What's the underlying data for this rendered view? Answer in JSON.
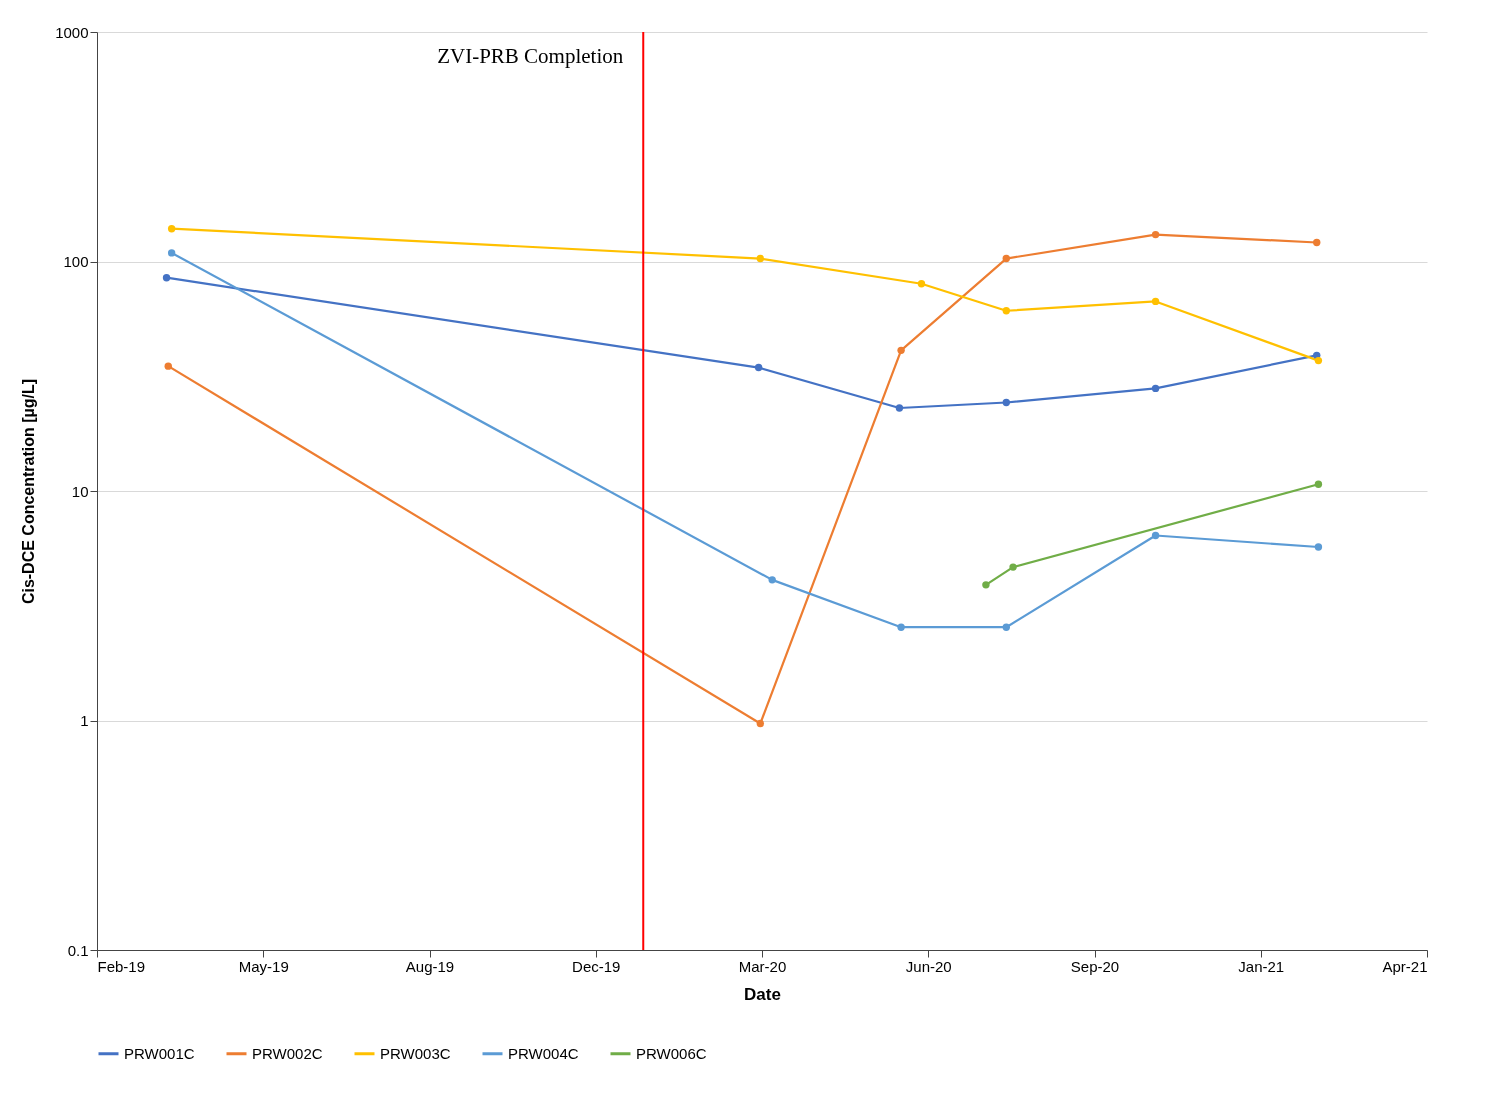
{
  "chart_data": {
    "type": "line",
    "xlabel": "Date",
    "ylabel": "Cis-DCE Concentration [µg/L]",
    "log": "y",
    "grid": "y",
    "legend": "bottom",
    "marker": "circle",
    "line_style": "solid",
    "xlim": [
      "2019-02-15",
      "2021-04-09"
    ],
    "xticks": [
      {
        "value": "2019-02-15",
        "label": "Feb-19"
      },
      {
        "value": "2019-05-24",
        "label": "May-19"
      },
      {
        "value": "2019-08-30",
        "label": "Aug-19"
      },
      {
        "value": "2019-12-06",
        "label": "Dec-19"
      },
      {
        "value": "2020-03-13",
        "label": "Mar-20"
      },
      {
        "value": "2020-06-19",
        "label": "Jun-20"
      },
      {
        "value": "2020-09-25",
        "label": "Sep-20"
      },
      {
        "value": "2021-01-01",
        "label": "Jan-21"
      },
      {
        "value": "2021-04-09",
        "label": "Apr-21"
      }
    ],
    "ylim": [
      0.1,
      1000
    ],
    "yticks": [
      0.1,
      1,
      10,
      100,
      1000
    ],
    "ref_lines": [
      {
        "axis": "x",
        "value": "2020-01-03",
        "label": "ZVI-PRB Completion",
        "color": "#ff0000"
      }
    ],
    "series": [
      {
        "name": "PRW001C",
        "color": "#4472c4",
        "x": [
          "2019-03-28",
          "2020-03-11",
          "2020-06-02",
          "2020-08-04",
          "2020-10-31",
          "2021-02-03"
        ],
        "values": [
          85,
          34.5,
          23,
          24.3,
          28,
          39
        ]
      },
      {
        "name": "PRW002C",
        "color": "#ed7d31",
        "x": [
          "2019-03-29",
          "2020-03-12",
          "2020-06-03",
          "2020-08-04",
          "2020-10-31",
          "2021-02-03"
        ],
        "values": [
          35,
          0.97,
          41,
          103,
          131,
          121
        ]
      },
      {
        "name": "PRW003C",
        "color": "#ffc000",
        "x": [
          "2019-03-31",
          "2020-03-12",
          "2020-06-15",
          "2020-08-04",
          "2020-10-31",
          "2021-02-04"
        ],
        "values": [
          139,
          103,
          80,
          61,
          67,
          37
        ]
      },
      {
        "name": "PRW004C",
        "color": "#5b9bd5",
        "x": [
          "2019-03-31",
          "2020-03-19",
          "2020-06-03",
          "2020-08-04",
          "2020-10-31",
          "2021-02-04"
        ],
        "values": [
          109,
          4.1,
          2.55,
          2.55,
          6.4,
          5.7
        ]
      },
      {
        "name": "PRW006C",
        "color": "#70ad47",
        "x": [
          "2020-07-23",
          "2020-08-08",
          "2021-02-04"
        ],
        "values": [
          3.9,
          4.66,
          10.7
        ]
      }
    ]
  }
}
